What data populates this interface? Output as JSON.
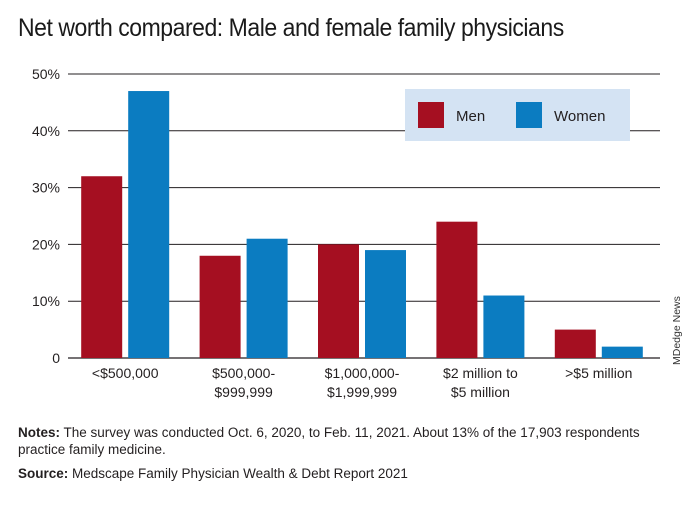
{
  "title": "Net worth compared: Male and female family physicians",
  "credit": "MDedge News",
  "colors": {
    "men": "#a50f21",
    "women": "#0b7cc1",
    "legend_bg": "#d4e3f3"
  },
  "notes": {
    "label": "Notes:",
    "text": " The survey was conducted Oct. 6, 2020, to Feb. 11, 2021. About 13% of the 17,903 respondents practice family medicine."
  },
  "source": {
    "label": "Source:",
    "text": " Medscape Family Physician Wealth & Debt Report 2021"
  },
  "chart_data": {
    "type": "bar",
    "categories": [
      [
        "<$500,000"
      ],
      [
        "$500,000-",
        "$999,999"
      ],
      [
        "$1,000,000-",
        "$1,999,999"
      ],
      [
        "$2 million to",
        "$5 million"
      ],
      [
        ">$5 million"
      ]
    ],
    "series": [
      {
        "name": "Men",
        "values": [
          32,
          18,
          20,
          24,
          5
        ]
      },
      {
        "name": "Women",
        "values": [
          47,
          21,
          19,
          11,
          2
        ]
      }
    ],
    "ylim": [
      0,
      50
    ],
    "yticks": [
      0,
      10,
      20,
      30,
      40,
      50
    ],
    "ytick_labels": [
      "0",
      "10%",
      "20%",
      "30%",
      "40%",
      "50%"
    ],
    "grid": true,
    "legend": "top-right"
  }
}
